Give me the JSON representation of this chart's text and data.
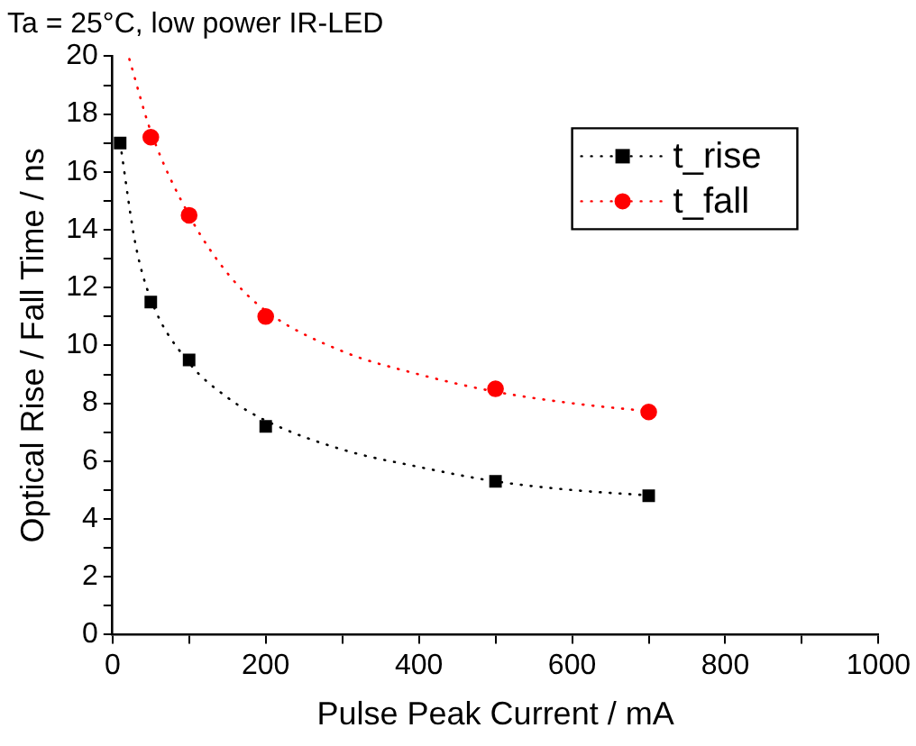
{
  "chart_data": {
    "type": "scatter",
    "title": "Ta = 25°C, low power IR-LED",
    "xlabel": "Pulse Peak Current / mA",
    "ylabel": "Optical Rise / Fall Time / ns",
    "xlim": [
      0,
      1000
    ],
    "ylim": [
      0,
      20
    ],
    "xticks": [
      0,
      {
        "value": 100,
        "label": null
      },
      200,
      {
        "value": 300,
        "label": null
      },
      400,
      {
        "value": 500,
        "label": null
      },
      600,
      {
        "value": 700,
        "label": null
      },
      800,
      {
        "value": 900,
        "label": null
      },
      1000
    ],
    "yticks": [
      0,
      {
        "value": 1,
        "label": null
      },
      2,
      {
        "value": 3,
        "label": null
      },
      4,
      {
        "value": 5,
        "label": null
      },
      6,
      {
        "value": 7,
        "label": null
      },
      8,
      {
        "value": 9,
        "label": null
      },
      10,
      {
        "value": 11,
        "label": null
      },
      12,
      {
        "value": 13,
        "label": null
      },
      14,
      {
        "value": 15,
        "label": null
      },
      16,
      {
        "value": 17,
        "label": null
      },
      18,
      {
        "value": 19,
        "label": null
      },
      20
    ],
    "grid": false,
    "legend": "top right",
    "series": [
      {
        "type": "line",
        "color": "#000000",
        "line_style": "dotted",
        "marker": "none",
        "x": [
          10,
          30,
          50,
          100,
          150,
          200,
          300,
          400,
          500,
          600,
          710
        ],
        "values": [
          17,
          13.5,
          11.6,
          9.4,
          8.2,
          7.4,
          6.4,
          5.8,
          5.3,
          5.0,
          4.8
        ]
      },
      {
        "type": "line",
        "color": "#ff0000",
        "line_style": "dotted",
        "marker": "none",
        "x": [
          22,
          50,
          100,
          150,
          200,
          300,
          400,
          500,
          600,
          710
        ],
        "values": [
          19.9,
          17.4,
          14.5,
          12.5,
          11.2,
          9.8,
          9.0,
          8.4,
          8.0,
          7.7
        ]
      },
      {
        "name": "t_rise",
        "type": "scatter",
        "color": "#000000",
        "marker": "square",
        "line_style": "dotted",
        "x": [
          10,
          50,
          100,
          200,
          500,
          700
        ],
        "values": [
          17,
          11.5,
          9.5,
          7.2,
          5.3,
          4.8
        ]
      },
      {
        "name": "t_fall",
        "type": "scatter",
        "color": "#ff0000",
        "marker": "circle",
        "line_style": "dotted",
        "x": [
          50,
          100,
          200,
          500,
          700
        ],
        "values": [
          17.2,
          14.5,
          11,
          8.5,
          7.7
        ]
      }
    ]
  }
}
